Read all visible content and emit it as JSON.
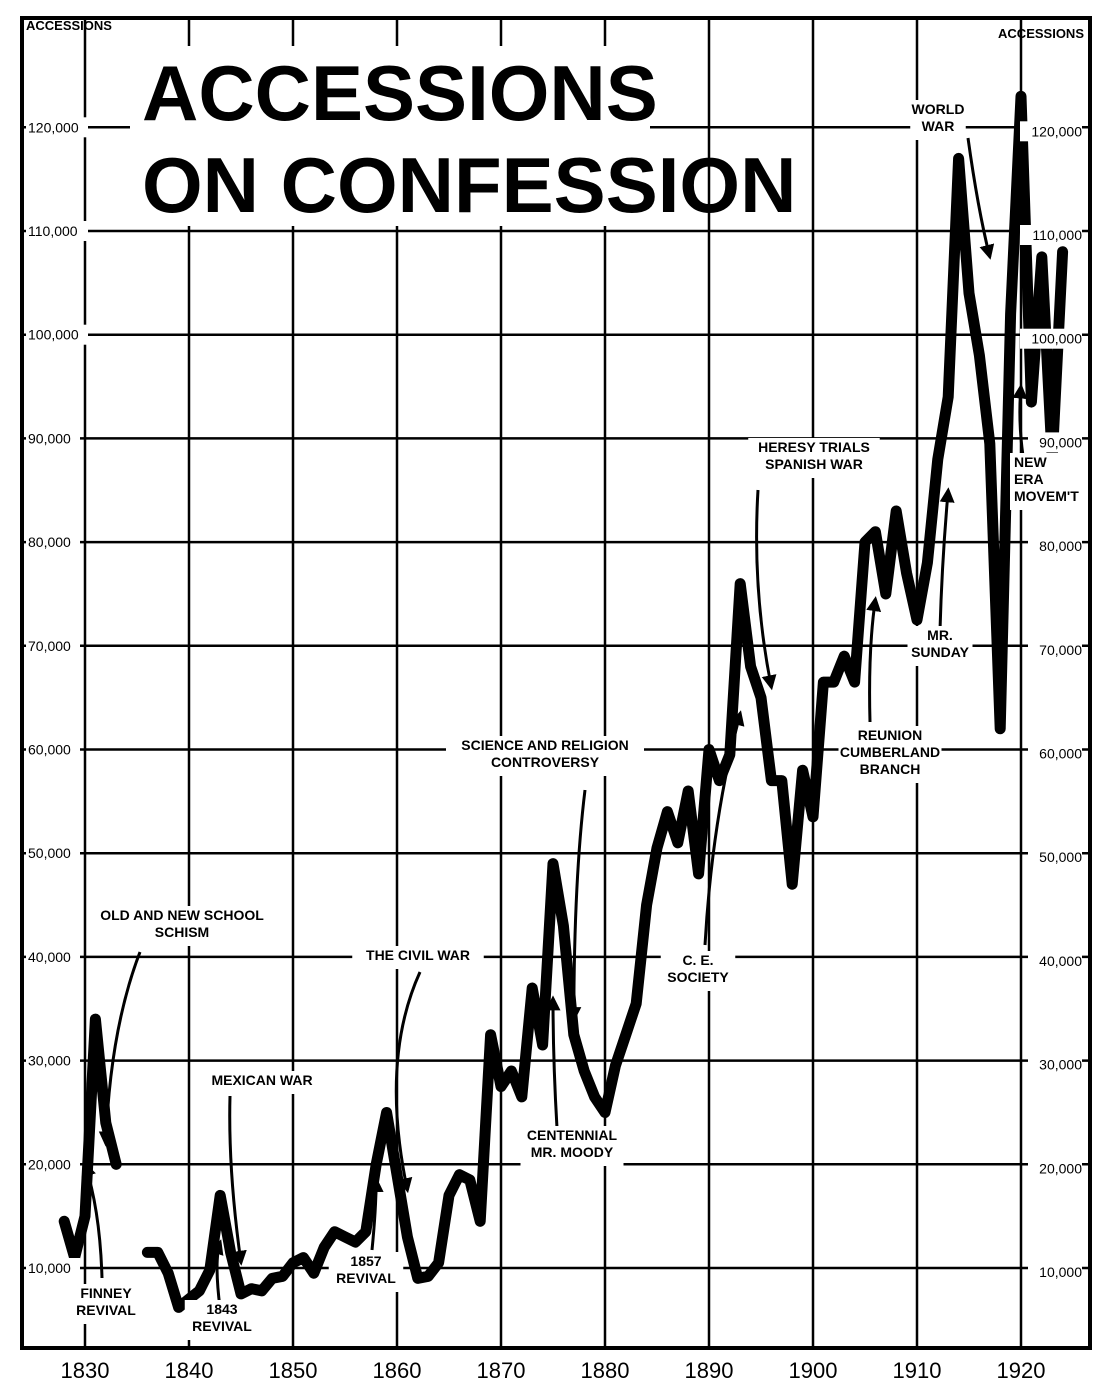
{
  "chart_data": {
    "type": "line",
    "title": "ACCESSIONS ON CONFESSION",
    "left_corner_label": "ACCESSIONS",
    "right_corner_label": "ACCESSIONS",
    "xlim": [
      1827,
      1925
    ],
    "ylim": [
      4000,
      124000
    ],
    "x_ticks": [
      1830,
      1840,
      1850,
      1860,
      1870,
      1880,
      1890,
      1900,
      1910,
      1920
    ],
    "y_ticks_left": [
      "10,000",
      "20,000",
      "30,000",
      "40,000",
      "50,000",
      "60,000",
      "70,000",
      "80,000",
      "90,000",
      "100,000",
      "110,000",
      "120,000"
    ],
    "y_ticks_right": [
      "10,000",
      "20,000",
      "30,000",
      "40,000",
      "50,000",
      "60,000",
      "70,000",
      "80,000",
      "90,000",
      "100,000",
      "110,000",
      "120,000"
    ],
    "grid": true,
    "series": [
      {
        "segments": [
          [
            [
              1828,
              14500
            ],
            [
              1829,
              11000
            ],
            [
              1830,
              15000
            ],
            [
              1831,
              34000
            ],
            [
              1832,
              24000
            ],
            [
              1833,
              20000
            ]
          ],
          [
            [
              1836,
              11500
            ],
            [
              1837,
              11500
            ],
            [
              1838,
              9500
            ],
            [
              1839,
              6200
            ],
            [
              1840,
              7000
            ],
            [
              1841,
              7800
            ],
            [
              1842,
              9800
            ],
            [
              1843,
              17000
            ],
            [
              1844,
              11500
            ],
            [
              1845,
              7500
            ],
            [
              1846,
              8000
            ],
            [
              1847,
              7800
            ],
            [
              1848,
              9000
            ],
            [
              1849,
              9200
            ],
            [
              1850,
              10500
            ],
            [
              1851,
              11000
            ],
            [
              1852,
              9500
            ],
            [
              1853,
              12000
            ],
            [
              1854,
              13500
            ],
            [
              1855,
              13000
            ],
            [
              1856,
              12500
            ],
            [
              1857,
              13500
            ],
            [
              1858,
              20000
            ],
            [
              1859,
              25000
            ],
            [
              1860,
              19000
            ],
            [
              1861,
              13000
            ],
            [
              1862,
              9000
            ],
            [
              1863,
              9200
            ],
            [
              1864,
              10500
            ],
            [
              1865,
              17000
            ],
            [
              1866,
              19000
            ],
            [
              1867,
              18500
            ],
            [
              1868,
              14500
            ],
            [
              1869,
              32500
            ],
            [
              1870,
              27500
            ],
            [
              1871,
              29000
            ],
            [
              1872,
              26500
            ],
            [
              1873,
              37000
            ],
            [
              1874,
              31500
            ],
            [
              1875,
              49000
            ],
            [
              1876,
              43000
            ],
            [
              1877,
              32500
            ],
            [
              1878,
              29000
            ],
            [
              1879,
              26500
            ],
            [
              1880,
              25000
            ],
            [
              1881,
              29500
            ],
            [
              1882,
              32500
            ],
            [
              1883,
              35500
            ],
            [
              1884,
              45000
            ],
            [
              1885,
              50500
            ],
            [
              1886,
              54000
            ],
            [
              1887,
              51000
            ],
            [
              1888,
              56000
            ],
            [
              1889,
              48000
            ],
            [
              1890,
              60000
            ],
            [
              1891,
              57000
            ],
            [
              1892,
              59500
            ],
            [
              1893,
              76000
            ],
            [
              1894,
              68000
            ],
            [
              1895,
              65000
            ],
            [
              1896,
              57000
            ],
            [
              1897,
              57000
            ],
            [
              1898,
              47000
            ],
            [
              1899,
              58000
            ],
            [
              1900,
              53500
            ],
            [
              1901,
              66500
            ],
            [
              1902,
              66500
            ],
            [
              1903,
              69000
            ],
            [
              1904,
              66500
            ],
            [
              1905,
              80000
            ],
            [
              1906,
              81000
            ],
            [
              1907,
              75000
            ],
            [
              1908,
              83000
            ],
            [
              1909,
              77000
            ],
            [
              1910,
              72500
            ],
            [
              1911,
              78000
            ],
            [
              1912,
              88000
            ],
            [
              1913,
              94000
            ],
            [
              1914,
              117000
            ],
            [
              1915,
              104000
            ],
            [
              1916,
              98000
            ],
            [
              1917,
              89500
            ],
            [
              1918,
              62000
            ],
            [
              1919,
              102000
            ],
            [
              1920,
              123000
            ],
            [
              1921,
              93500
            ],
            [
              1922,
              107500
            ],
            [
              1923,
              88000
            ],
            [
              1924,
              108000
            ]
          ]
        ]
      }
    ],
    "annotations": [
      {
        "lines": [
          "FINNEY",
          "REVIVAL"
        ],
        "year": 1830,
        "at": 20000
      },
      {
        "lines": [
          "OLD AND NEW SCHOOL",
          "SCHISM"
        ],
        "year": 1832,
        "at": 22000
      },
      {
        "lines": [
          "MEXICAN WAR"
        ],
        "year": 1845,
        "at": 10500
      },
      {
        "lines": [
          "1843",
          "REVIVAL"
        ],
        "year": 1843,
        "at": 12500
      },
      {
        "lines": [
          "1857",
          "REVIVAL"
        ],
        "year": 1858,
        "at": 18500
      },
      {
        "lines": [
          "THE CIVIL WAR"
        ],
        "year": 1861,
        "at": 17500
      },
      {
        "lines": [
          "SCIENCE AND RELIGION",
          "CONTROVERSY"
        ],
        "year": 1877,
        "at": 34000
      },
      {
        "lines": [
          "CENTENNIAL",
          "MR. MOODY"
        ],
        "year": 1875,
        "at": 36000
      },
      {
        "lines": [
          "C. E.",
          "SOCIETY"
        ],
        "year": 1893,
        "at": 63500
      },
      {
        "lines": [
          "HERESY TRIALS",
          "SPANISH WAR"
        ],
        "year": 1896,
        "at": 66000
      },
      {
        "lines": [
          "REUNION",
          "CUMBERLAND",
          "BRANCH"
        ],
        "year": 1906,
        "at": 74500
      },
      {
        "lines": [
          "MR.",
          "SUNDAY"
        ],
        "year": 1913,
        "at": 85000
      },
      {
        "lines": [
          "WORLD",
          "WAR"
        ],
        "year": 1917,
        "at": 107500
      },
      {
        "lines": [
          "NEW",
          "ERA",
          "MOVEM'T"
        ],
        "year": 1920,
        "at": 95000
      }
    ]
  }
}
